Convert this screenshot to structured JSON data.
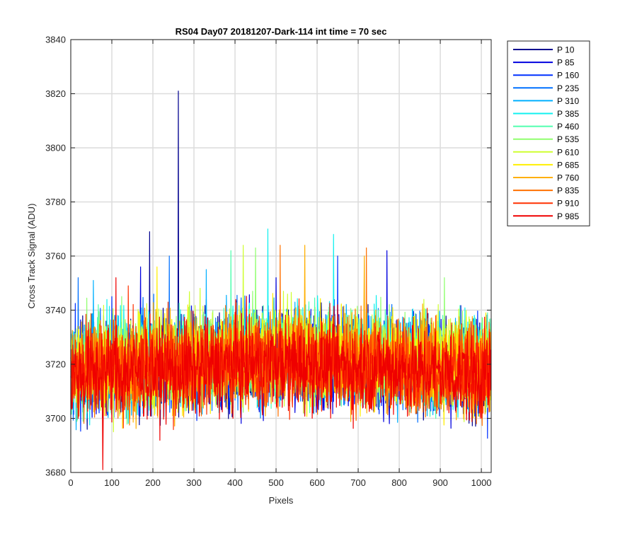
{
  "chart_data": {
    "type": "line",
    "title": "RS04 Day07 20181207-Dark-114 int time = 70 sec",
    "xlabel": "Pixels",
    "ylabel": "Cross Track Signal (ADU)",
    "xlim": [
      0,
      1024
    ],
    "ylim": [
      3680,
      3840
    ],
    "xticks": [
      0,
      100,
      200,
      300,
      400,
      500,
      600,
      700,
      800,
      900,
      1000
    ],
    "yticks": [
      3680,
      3700,
      3720,
      3740,
      3760,
      3780,
      3800,
      3820,
      3840
    ],
    "grid": true,
    "legend_position": "outside-top-right",
    "n_points": 1024,
    "series": [
      {
        "name": "P 10",
        "color": "#00008f",
        "base": 3720,
        "spikes": [
          [
            192,
            3769
          ],
          [
            262,
            3821
          ]
        ]
      },
      {
        "name": "P 85",
        "color": "#0000df",
        "base": 3719,
        "spikes": [
          [
            170,
            3756
          ],
          [
            500,
            3752
          ],
          [
            770,
            3762
          ]
        ]
      },
      {
        "name": "P 160",
        "color": "#0030ff",
        "base": 3720,
        "spikes": [
          [
            100,
            3745
          ],
          [
            650,
            3760
          ]
        ]
      },
      {
        "name": "P 235",
        "color": "#0070ff",
        "base": 3721,
        "spikes": [
          [
            18,
            3752
          ],
          [
            240,
            3760
          ]
        ]
      },
      {
        "name": "P 310",
        "color": "#00b0ff",
        "base": 3721,
        "spikes": [
          [
            55,
            3751
          ],
          [
            330,
            3755
          ]
        ]
      },
      {
        "name": "P 385",
        "color": "#10f0ef",
        "base": 3722,
        "spikes": [
          [
            480,
            3770
          ],
          [
            640,
            3768
          ]
        ]
      },
      {
        "name": "P 460",
        "color": "#50ffaf",
        "base": 3722,
        "spikes": [
          [
            390,
            3762
          ]
        ]
      },
      {
        "name": "P 535",
        "color": "#90ff6f",
        "base": 3722,
        "spikes": [
          [
            450,
            3763
          ],
          [
            910,
            3752
          ]
        ]
      },
      {
        "name": "P 610",
        "color": "#cfff30",
        "base": 3722,
        "spikes": [
          [
            420,
            3764
          ],
          [
            860,
            3744
          ]
        ]
      },
      {
        "name": "P 685",
        "color": "#ffef00",
        "base": 3721,
        "spikes": [
          [
            210,
            3756
          ]
        ]
      },
      {
        "name": "P 760",
        "color": "#ffaf00",
        "base": 3720,
        "spikes": [
          [
            570,
            3764
          ],
          [
            715,
            3760
          ]
        ]
      },
      {
        "name": "P 835",
        "color": "#ff7000",
        "base": 3720,
        "spikes": [
          [
            510,
            3764
          ],
          [
            720,
            3763
          ]
        ]
      },
      {
        "name": "P 910",
        "color": "#ff3000",
        "base": 3719,
        "spikes": [
          [
            140,
            3749
          ]
        ]
      },
      {
        "name": "P 985",
        "color": "#ef0000",
        "base": 3718,
        "spikes": [
          [
            110,
            3752
          ],
          [
            78,
            3681
          ]
        ]
      }
    ]
  }
}
